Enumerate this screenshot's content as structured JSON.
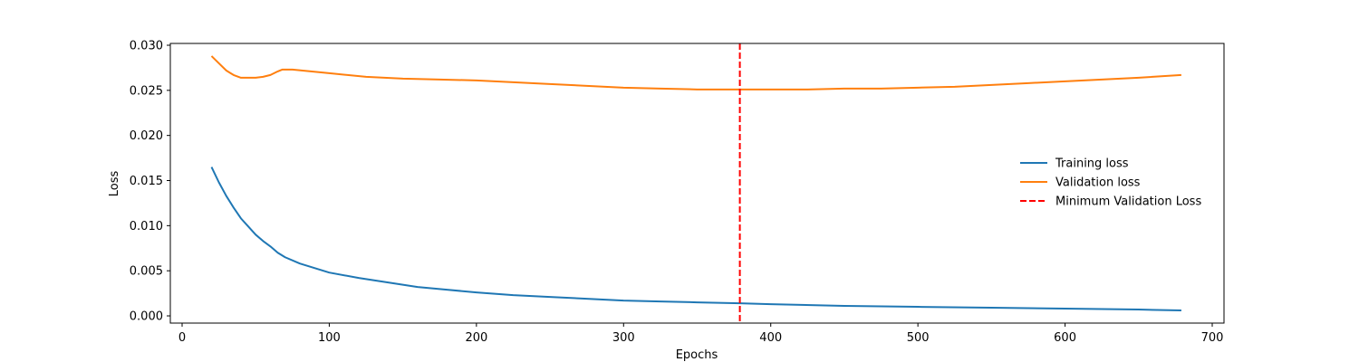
{
  "chart_data": {
    "type": "line",
    "title": "",
    "xlabel": "Epochs",
    "ylabel": "Loss",
    "xlim": [
      -8,
      708
    ],
    "ylim": [
      -0.0008,
      0.0302
    ],
    "xticks": [
      0,
      100,
      200,
      300,
      400,
      500,
      600,
      700
    ],
    "yticks": [
      0.0,
      0.005,
      0.01,
      0.015,
      0.02,
      0.025,
      0.03
    ],
    "ytick_format": "0.000",
    "grid": false,
    "legend_position": "center-right",
    "series": [
      {
        "name": "Training loss",
        "color": "#1f77b4",
        "points": [
          [
            20,
            0.0165
          ],
          [
            25,
            0.0148
          ],
          [
            30,
            0.0133
          ],
          [
            35,
            0.012
          ],
          [
            40,
            0.0108
          ],
          [
            45,
            0.0099
          ],
          [
            50,
            0.009
          ],
          [
            55,
            0.0083
          ],
          [
            60,
            0.0077
          ],
          [
            65,
            0.007
          ],
          [
            70,
            0.0065
          ],
          [
            80,
            0.0058
          ],
          [
            90,
            0.0053
          ],
          [
            100,
            0.0048
          ],
          [
            120,
            0.0042
          ],
          [
            140,
            0.0037
          ],
          [
            160,
            0.0032
          ],
          [
            180,
            0.0029
          ],
          [
            200,
            0.0026
          ],
          [
            225,
            0.0023
          ],
          [
            250,
            0.0021
          ],
          [
            275,
            0.0019
          ],
          [
            300,
            0.0017
          ],
          [
            325,
            0.0016
          ],
          [
            350,
            0.0015
          ],
          [
            379,
            0.0014
          ],
          [
            400,
            0.0013
          ],
          [
            450,
            0.0011
          ],
          [
            500,
            0.001
          ],
          [
            550,
            0.0009
          ],
          [
            600,
            0.0008
          ],
          [
            650,
            0.0007
          ],
          [
            679,
            0.0006
          ]
        ]
      },
      {
        "name": "Validation loss",
        "color": "#ff7f0e",
        "points": [
          [
            20,
            0.0288
          ],
          [
            25,
            0.028
          ],
          [
            30,
            0.0272
          ],
          [
            35,
            0.0267
          ],
          [
            40,
            0.0264
          ],
          [
            45,
            0.0264
          ],
          [
            50,
            0.0264
          ],
          [
            55,
            0.0265
          ],
          [
            60,
            0.0267
          ],
          [
            65,
            0.0271
          ],
          [
            68,
            0.0273
          ],
          [
            75,
            0.0273
          ],
          [
            100,
            0.0269
          ],
          [
            125,
            0.0265
          ],
          [
            150,
            0.0263
          ],
          [
            175,
            0.0262
          ],
          [
            200,
            0.0261
          ],
          [
            225,
            0.0259
          ],
          [
            250,
            0.0257
          ],
          [
            275,
            0.0255
          ],
          [
            300,
            0.0253
          ],
          [
            325,
            0.0252
          ],
          [
            350,
            0.0251
          ],
          [
            379,
            0.0251
          ],
          [
            400,
            0.0251
          ],
          [
            425,
            0.0251
          ],
          [
            450,
            0.0252
          ],
          [
            475,
            0.0252
          ],
          [
            500,
            0.0253
          ],
          [
            525,
            0.0254
          ],
          [
            550,
            0.0256
          ],
          [
            575,
            0.0258
          ],
          [
            600,
            0.026
          ],
          [
            625,
            0.0262
          ],
          [
            650,
            0.0264
          ],
          [
            679,
            0.0267
          ]
        ]
      }
    ],
    "vlines": [
      {
        "name": "Minimum Validation Loss",
        "x": 379,
        "color": "#ff0000",
        "style": "dashed"
      }
    ]
  }
}
